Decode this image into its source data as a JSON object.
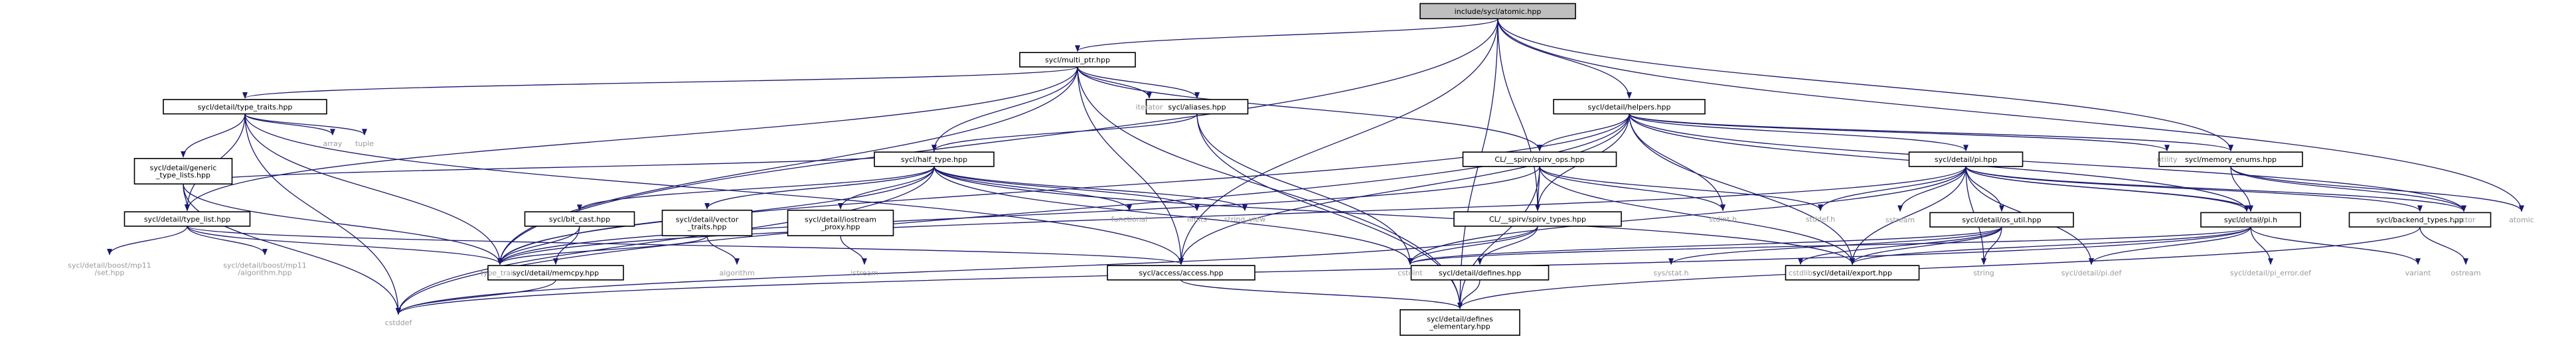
{
  "colors": {
    "edge": "#191970",
    "box_border": "#000000",
    "plain_text": "#000000",
    "system_text": "#9a9a9a",
    "root_fill": "#bfbfbf",
    "node_fill": "#ffffff"
  },
  "nodes": [
    {
      "id": "atomic",
      "label": "include/sycl/atomic.hpp",
      "style": "root"
    },
    {
      "id": "multi_ptr",
      "label": "sycl/multi_ptr.hpp",
      "style": "box"
    },
    {
      "id": "type_traits_sycl",
      "label": "sycl/detail/type_traits.hpp",
      "style": "box"
    },
    {
      "id": "helpers",
      "label": "sycl/detail/helpers.hpp",
      "style": "box"
    },
    {
      "id": "memory_enums",
      "label": "sycl/memory_enums.hpp",
      "style": "box"
    },
    {
      "id": "aliases",
      "label": "sycl/aliases.hpp",
      "style": "box"
    },
    {
      "id": "generic_type_lists",
      "label": [
        "sycl/detail/generic",
        "_type_lists.hpp"
      ],
      "style": "box"
    },
    {
      "id": "half_type",
      "label": "sycl/half_type.hpp",
      "style": "box"
    },
    {
      "id": "spirv_ops",
      "label": "CL/__spirv/spirv_ops.hpp",
      "style": "box"
    },
    {
      "id": "pi_hpp",
      "label": "sycl/detail/pi.hpp",
      "style": "box"
    },
    {
      "id": "type_list",
      "label": "sycl/detail/type_list.hpp",
      "style": "box"
    },
    {
      "id": "bit_cast",
      "label": "sycl/bit_cast.hpp",
      "style": "box"
    },
    {
      "id": "vector_traits",
      "label": [
        "sycl/detail/vector",
        "_traits.hpp"
      ],
      "style": "box"
    },
    {
      "id": "iostream_proxy",
      "label": [
        "sycl/detail/iostream",
        "_proxy.hpp"
      ],
      "style": "box"
    },
    {
      "id": "spirv_types",
      "label": "CL/__spirv/spirv_types.hpp",
      "style": "box"
    },
    {
      "id": "os_util",
      "label": "sycl/detail/os_util.hpp",
      "style": "box"
    },
    {
      "id": "pi_h",
      "label": "sycl/detail/pi.h",
      "style": "box"
    },
    {
      "id": "backend_types",
      "label": "sycl/backend_types.hpp",
      "style": "box"
    },
    {
      "id": "memcpy",
      "label": "sycl/detail/memcpy.hpp",
      "style": "box"
    },
    {
      "id": "access",
      "label": "sycl/access/access.hpp",
      "style": "box"
    },
    {
      "id": "defines",
      "label": "sycl/detail/defines.hpp",
      "style": "box"
    },
    {
      "id": "export",
      "label": "sycl/detail/export.hpp",
      "style": "box"
    },
    {
      "id": "defines_elementary",
      "label": [
        "sycl/detail/defines",
        "_elementary.hpp"
      ],
      "style": "box"
    },
    {
      "id": "iterator",
      "label": "iterator",
      "style": "system"
    },
    {
      "id": "array",
      "label": "array",
      "style": "system"
    },
    {
      "id": "tuple",
      "label": "tuple",
      "style": "system"
    },
    {
      "id": "utility",
      "label": "utility",
      "style": "system"
    },
    {
      "id": "memory",
      "label": "memory",
      "style": "system"
    },
    {
      "id": "vector",
      "label": "vector",
      "style": "system"
    },
    {
      "id": "atomic_std",
      "label": "atomic",
      "style": "system"
    },
    {
      "id": "functional",
      "label": "functional",
      "style": "system"
    },
    {
      "id": "limits",
      "label": "limits",
      "style": "system"
    },
    {
      "id": "string_view",
      "label": "string_view",
      "style": "system"
    },
    {
      "id": "stdint_h",
      "label": "stdint.h",
      "style": "system"
    },
    {
      "id": "stddef_h",
      "label": "stddef.h",
      "style": "system"
    },
    {
      "id": "sstream",
      "label": "sstream",
      "style": "system"
    },
    {
      "id": "mp11_set",
      "label": [
        "sycl/detail/boost/mp11",
        "/set.hpp"
      ],
      "style": "system"
    },
    {
      "id": "mp11_algorithm",
      "label": [
        "sycl/detail/boost/mp11",
        "/algorithm.hpp"
      ],
      "style": "system"
    },
    {
      "id": "type_traits_std",
      "label": "type_traits",
      "style": "system"
    },
    {
      "id": "algorithm",
      "label": "algorithm",
      "style": "system"
    },
    {
      "id": "istream",
      "label": "istream",
      "style": "system"
    },
    {
      "id": "cstdint",
      "label": "cstdint",
      "style": "system"
    },
    {
      "id": "sys_stat",
      "label": "sys/stat.h",
      "style": "system"
    },
    {
      "id": "cstdlib",
      "label": "cstdlib",
      "style": "system"
    },
    {
      "id": "string",
      "label": "string",
      "style": "system"
    },
    {
      "id": "pi_def",
      "label": "sycl/detail/pi.def",
      "style": "system"
    },
    {
      "id": "pi_error_def",
      "label": "sycl/detail/pi_error.def",
      "style": "system"
    },
    {
      "id": "variant",
      "label": "variant",
      "style": "system"
    },
    {
      "id": "ostream",
      "label": "ostream",
      "style": "system"
    },
    {
      "id": "cstddef",
      "label": "cstddef",
      "style": "system"
    }
  ],
  "edges": [
    [
      "atomic",
      "multi_ptr"
    ],
    [
      "atomic",
      "helpers"
    ],
    [
      "atomic",
      "memory_enums"
    ],
    [
      "atomic",
      "access"
    ],
    [
      "atomic",
      "spirv_types"
    ],
    [
      "atomic",
      "atomic_std"
    ],
    [
      "atomic",
      "defines_elementary"
    ],
    [
      "atomic",
      "type_traits_std"
    ],
    [
      "multi_ptr",
      "type_traits_sycl"
    ],
    [
      "multi_ptr",
      "aliases"
    ],
    [
      "multi_ptr",
      "half_type"
    ],
    [
      "multi_ptr",
      "access"
    ],
    [
      "multi_ptr",
      "iterator"
    ],
    [
      "multi_ptr",
      "spirv_ops"
    ],
    [
      "multi_ptr",
      "defines_elementary"
    ],
    [
      "multi_ptr",
      "type_traits_std"
    ],
    [
      "multi_ptr",
      "type_list"
    ],
    [
      "type_traits_sycl",
      "generic_type_lists"
    ],
    [
      "type_traits_sycl",
      "type_list"
    ],
    [
      "type_traits_sycl",
      "array"
    ],
    [
      "type_traits_sycl",
      "tuple"
    ],
    [
      "type_traits_sycl",
      "type_traits_std"
    ],
    [
      "type_traits_sycl",
      "access"
    ],
    [
      "type_traits_sycl",
      "cstddef"
    ],
    [
      "generic_type_lists",
      "type_list"
    ],
    [
      "generic_type_lists",
      "half_type"
    ],
    [
      "generic_type_lists",
      "type_traits_std"
    ],
    [
      "generic_type_lists",
      "cstddef"
    ],
    [
      "type_list",
      "mp11_set"
    ],
    [
      "type_list",
      "mp11_algorithm"
    ],
    [
      "type_list",
      "type_traits_std"
    ],
    [
      "type_list",
      "access"
    ],
    [
      "aliases",
      "half_type"
    ],
    [
      "aliases",
      "cstdint"
    ],
    [
      "aliases",
      "defines_elementary"
    ],
    [
      "half_type",
      "bit_cast"
    ],
    [
      "half_type",
      "vector_traits"
    ],
    [
      "half_type",
      "iostream_proxy"
    ],
    [
      "half_type",
      "functional"
    ],
    [
      "half_type",
      "limits"
    ],
    [
      "half_type",
      "string_view"
    ],
    [
      "half_type",
      "cstddef"
    ],
    [
      "half_type",
      "type_traits_std"
    ],
    [
      "half_type",
      "cstdint"
    ],
    [
      "half_type",
      "export"
    ],
    [
      "bit_cast",
      "memcpy"
    ],
    [
      "bit_cast",
      "type_traits_std"
    ],
    [
      "vector_traits",
      "algorithm"
    ],
    [
      "vector_traits",
      "type_traits_std"
    ],
    [
      "iostream_proxy",
      "istream"
    ],
    [
      "memcpy",
      "cstddef"
    ],
    [
      "helpers",
      "pi_hpp"
    ],
    [
      "helpers",
      "memory_enums"
    ],
    [
      "helpers",
      "spirv_types"
    ],
    [
      "helpers",
      "access"
    ],
    [
      "helpers",
      "export"
    ],
    [
      "helpers",
      "utility"
    ],
    [
      "helpers",
      "memory"
    ],
    [
      "helpers",
      "vector"
    ],
    [
      "helpers",
      "stdint_h"
    ],
    [
      "helpers",
      "type_traits_std"
    ],
    [
      "helpers",
      "cstddef"
    ],
    [
      "helpers",
      "spirv_ops"
    ],
    [
      "spirv_ops",
      "spirv_types"
    ],
    [
      "spirv_ops",
      "stddef_h"
    ],
    [
      "spirv_ops",
      "stdint_h"
    ],
    [
      "spirv_ops",
      "type_traits_std"
    ],
    [
      "spirv_ops",
      "export"
    ],
    [
      "spirv_ops",
      "defines_elementary"
    ],
    [
      "spirv_types",
      "defines"
    ],
    [
      "spirv_types",
      "cstdint"
    ],
    [
      "spirv_types",
      "cstddef"
    ],
    [
      "defines",
      "defines_elementary"
    ],
    [
      "access",
      "defines_elementary"
    ],
    [
      "memory_enums",
      "pi_h"
    ],
    [
      "memory_enums",
      "vector"
    ],
    [
      "memory_enums",
      "atomic_std"
    ],
    [
      "pi_hpp",
      "os_util"
    ],
    [
      "pi_hpp",
      "pi_h"
    ],
    [
      "pi_hpp",
      "backend_types"
    ],
    [
      "pi_hpp",
      "export"
    ],
    [
      "pi_hpp",
      "sstream"
    ],
    [
      "pi_hpp",
      "string"
    ],
    [
      "pi_hpp",
      "memory"
    ],
    [
      "pi_hpp",
      "vector"
    ],
    [
      "pi_hpp",
      "pi_def"
    ],
    [
      "pi_hpp",
      "stddef_h"
    ],
    [
      "pi_hpp",
      "cstdint"
    ],
    [
      "pi_hpp",
      "type_traits_std"
    ],
    [
      "os_util",
      "export"
    ],
    [
      "os_util",
      "sys_stat"
    ],
    [
      "os_util",
      "cstdlib"
    ],
    [
      "os_util",
      "string"
    ],
    [
      "os_util",
      "cstdint"
    ],
    [
      "pi_h",
      "export"
    ],
    [
      "pi_h",
      "pi_def"
    ],
    [
      "pi_h",
      "pi_error_def"
    ],
    [
      "pi_h",
      "variant"
    ],
    [
      "pi_h",
      "cstdint"
    ],
    [
      "pi_h",
      "cstddef"
    ],
    [
      "backend_types",
      "ostream"
    ],
    [
      "backend_types",
      "defines_elementary"
    ]
  ]
}
